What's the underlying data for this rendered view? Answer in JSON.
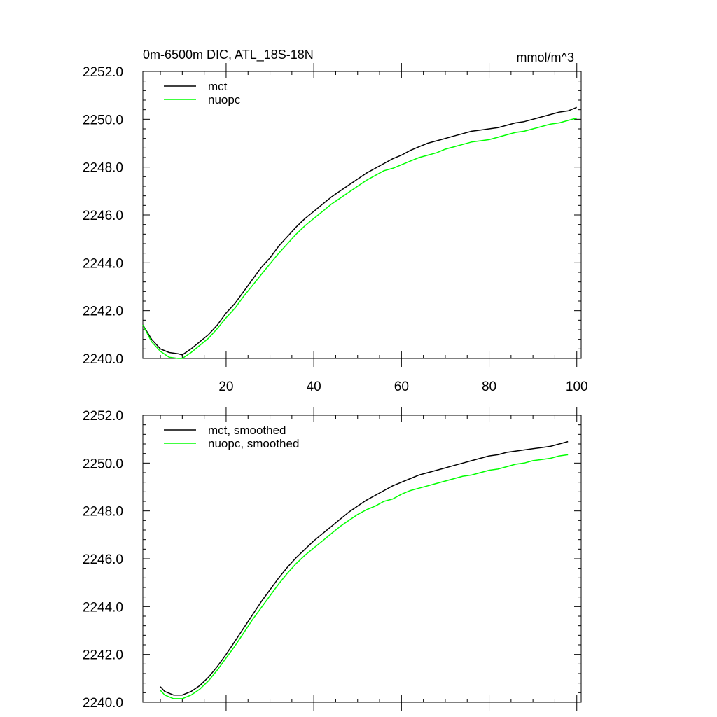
{
  "chart_data": [
    {
      "type": "line",
      "title": "0m-6500m DIC, ATL_18S-18N",
      "units": "mmol/m^3",
      "xlim": [
        1,
        101
      ],
      "ylim": [
        2240,
        2252
      ],
      "xticks": [
        20,
        40,
        60,
        80,
        100
      ],
      "xtick_labels": [
        "20",
        "40",
        "60",
        "80",
        "100"
      ],
      "yticks": [
        2240,
        2242,
        2244,
        2246,
        2248,
        2250,
        2252
      ],
      "ytick_labels": [
        "2240.0",
        "2242.0",
        "2244.0",
        "2246.0",
        "2248.0",
        "2250.0",
        "2252.0"
      ],
      "legend_position": "top-left",
      "series": [
        {
          "name": "mct",
          "color": "#000000",
          "x": [
            1,
            3,
            5,
            7,
            9,
            10,
            12,
            14,
            16,
            18,
            20,
            22,
            24,
            26,
            28,
            30,
            32,
            34,
            36,
            38,
            40,
            42,
            44,
            46,
            48,
            50,
            52,
            54,
            56,
            58,
            60,
            62,
            64,
            66,
            68,
            70,
            72,
            74,
            76,
            78,
            80,
            82,
            84,
            86,
            88,
            90,
            92,
            94,
            96,
            98,
            100
          ],
          "values": [
            2241.4,
            2240.8,
            2240.4,
            2240.25,
            2240.2,
            2240.15,
            2240.4,
            2240.7,
            2241.0,
            2241.4,
            2241.9,
            2242.3,
            2242.8,
            2243.3,
            2243.8,
            2244.2,
            2244.7,
            2245.1,
            2245.5,
            2245.85,
            2246.15,
            2246.45,
            2246.75,
            2247.0,
            2247.25,
            2247.5,
            2247.75,
            2247.95,
            2248.15,
            2248.35,
            2248.5,
            2248.7,
            2248.85,
            2249.0,
            2249.1,
            2249.2,
            2249.3,
            2249.4,
            2249.5,
            2249.55,
            2249.6,
            2249.65,
            2249.75,
            2249.85,
            2249.9,
            2250.0,
            2250.1,
            2250.2,
            2250.3,
            2250.35,
            2250.5
          ]
        },
        {
          "name": "nuopc",
          "color": "#00ff00",
          "x": [
            1,
            3,
            5,
            7,
            9,
            10,
            12,
            14,
            16,
            18,
            20,
            22,
            24,
            26,
            28,
            30,
            32,
            34,
            36,
            38,
            40,
            42,
            44,
            46,
            48,
            50,
            52,
            54,
            56,
            58,
            60,
            62,
            64,
            66,
            68,
            70,
            72,
            74,
            76,
            78,
            80,
            82,
            84,
            86,
            88,
            90,
            92,
            94,
            96,
            98,
            100
          ],
          "values": [
            2241.4,
            2240.7,
            2240.3,
            2240.05,
            2240.0,
            2240.0,
            2240.25,
            2240.55,
            2240.85,
            2241.25,
            2241.7,
            2242.1,
            2242.6,
            2243.05,
            2243.5,
            2243.95,
            2244.4,
            2244.8,
            2245.2,
            2245.55,
            2245.85,
            2246.15,
            2246.45,
            2246.7,
            2246.95,
            2247.2,
            2247.45,
            2247.65,
            2247.85,
            2247.95,
            2248.1,
            2248.25,
            2248.4,
            2248.5,
            2248.6,
            2248.75,
            2248.85,
            2248.95,
            2249.05,
            2249.1,
            2249.15,
            2249.25,
            2249.35,
            2249.45,
            2249.5,
            2249.6,
            2249.7,
            2249.8,
            2249.85,
            2249.95,
            2250.05
          ]
        }
      ]
    },
    {
      "type": "line",
      "title": "",
      "units": "",
      "xlim": [
        1,
        101
      ],
      "ylim": [
        2240,
        2252
      ],
      "xticks": [
        20,
        40,
        60,
        80,
        100
      ],
      "xtick_labels": [],
      "yticks": [
        2240,
        2242,
        2244,
        2246,
        2248,
        2250,
        2252
      ],
      "ytick_labels": [
        "2240.0",
        "2242.0",
        "2244.0",
        "2246.0",
        "2248.0",
        "2250.0",
        "2252.0"
      ],
      "legend_position": "top-left",
      "series": [
        {
          "name": "mct, smoothed",
          "color": "#000000",
          "x": [
            5,
            6,
            8,
            10,
            12,
            14,
            16,
            18,
            20,
            22,
            24,
            26,
            28,
            30,
            32,
            34,
            36,
            38,
            40,
            42,
            44,
            46,
            48,
            50,
            52,
            54,
            56,
            58,
            60,
            62,
            64,
            66,
            68,
            70,
            72,
            74,
            76,
            78,
            80,
            82,
            84,
            86,
            88,
            90,
            92,
            94,
            96,
            98
          ],
          "values": [
            2240.65,
            2240.45,
            2240.3,
            2240.3,
            2240.45,
            2240.7,
            2241.05,
            2241.5,
            2242.0,
            2242.55,
            2243.1,
            2243.65,
            2244.2,
            2244.7,
            2245.2,
            2245.65,
            2246.05,
            2246.4,
            2246.75,
            2247.05,
            2247.35,
            2247.65,
            2247.95,
            2248.2,
            2248.45,
            2248.65,
            2248.85,
            2249.05,
            2249.2,
            2249.35,
            2249.5,
            2249.6,
            2249.7,
            2249.8,
            2249.9,
            2250.0,
            2250.1,
            2250.2,
            2250.3,
            2250.35,
            2250.45,
            2250.5,
            2250.55,
            2250.6,
            2250.65,
            2250.7,
            2250.8,
            2250.9
          ]
        },
        {
          "name": "nuopc, smoothed",
          "color": "#00ff00",
          "x": [
            5,
            6,
            8,
            10,
            12,
            14,
            16,
            18,
            20,
            22,
            24,
            26,
            28,
            30,
            32,
            34,
            36,
            38,
            40,
            42,
            44,
            46,
            48,
            50,
            52,
            54,
            56,
            58,
            60,
            62,
            64,
            66,
            68,
            70,
            72,
            74,
            76,
            78,
            80,
            82,
            84,
            86,
            88,
            90,
            92,
            94,
            96,
            98
          ],
          "values": [
            2240.5,
            2240.3,
            2240.15,
            2240.15,
            2240.3,
            2240.55,
            2240.9,
            2241.35,
            2241.85,
            2242.35,
            2242.9,
            2243.45,
            2243.95,
            2244.45,
            2244.95,
            2245.4,
            2245.8,
            2246.15,
            2246.45,
            2246.75,
            2247.05,
            2247.35,
            2247.6,
            2247.85,
            2248.05,
            2248.2,
            2248.4,
            2248.5,
            2248.7,
            2248.85,
            2248.95,
            2249.05,
            2249.15,
            2249.25,
            2249.35,
            2249.45,
            2249.5,
            2249.6,
            2249.7,
            2249.75,
            2249.85,
            2249.95,
            2250.0,
            2250.1,
            2250.15,
            2250.2,
            2250.3,
            2250.35
          ]
        }
      ]
    }
  ]
}
